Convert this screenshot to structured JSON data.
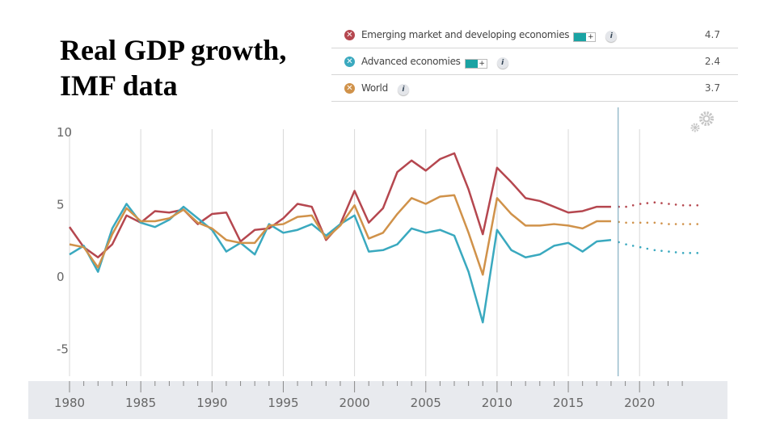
{
  "slide": {
    "title_line1": "Real GDP growth,",
    "title_line2": "IMF data"
  },
  "legend": [
    {
      "label": "Emerging market and developing economies",
      "value": "4.7",
      "color": "#b5474f",
      "has_toggle": true,
      "toggle_label": "+",
      "info": "i"
    },
    {
      "label": "Advanced economies",
      "value": "2.4",
      "color": "#3aa9bf",
      "has_toggle": true,
      "toggle_label": "+",
      "info": "i"
    },
    {
      "label": "World",
      "value": "3.7",
      "color": "#d0924a",
      "has_toggle": false,
      "info": "i"
    }
  ],
  "settings_icon": "gear-icon",
  "chart_data": {
    "type": "line",
    "title": "Real GDP growth, IMF data",
    "xlabel": "",
    "ylabel": "",
    "ylim": [
      -5,
      10
    ],
    "xlim": [
      1980,
      2024
    ],
    "yticks": [
      "10",
      "5",
      "0",
      "-5"
    ],
    "ytick_values": [
      10,
      5,
      0,
      -5
    ],
    "xticks": [
      "1980",
      "1985",
      "1990",
      "1995",
      "2000",
      "2005",
      "2010",
      "2015",
      "2020"
    ],
    "xtick_values": [
      1980,
      1985,
      1990,
      1995,
      2000,
      2005,
      2010,
      2015,
      2020
    ],
    "grid": true,
    "current_year_marker": 2018.5,
    "projection_start": 2019,
    "x": [
      1980,
      1981,
      1982,
      1983,
      1984,
      1985,
      1986,
      1987,
      1988,
      1989,
      1990,
      1991,
      1992,
      1993,
      1994,
      1995,
      1996,
      1997,
      1998,
      1999,
      2000,
      2001,
      2002,
      2003,
      2004,
      2005,
      2006,
      2007,
      2008,
      2009,
      2010,
      2011,
      2012,
      2013,
      2014,
      2015,
      2016,
      2017,
      2018,
      2019,
      2020,
      2021,
      2022,
      2023,
      2024
    ],
    "series": [
      {
        "name": "Emerging market and developing economies",
        "color": "#b5474f",
        "values": [
          3.4,
          2.0,
          1.3,
          2.2,
          4.2,
          3.7,
          4.5,
          4.4,
          4.6,
          3.6,
          4.3,
          4.4,
          2.4,
          3.2,
          3.3,
          4.0,
          5.0,
          4.8,
          2.5,
          3.6,
          5.9,
          3.7,
          4.7,
          7.2,
          8.0,
          7.3,
          8.1,
          8.5,
          6.0,
          2.9,
          7.5,
          6.5,
          5.4,
          5.2,
          4.8,
          4.4,
          4.5,
          4.8,
          4.8,
          4.8,
          5.0,
          5.1,
          5.0,
          4.9,
          4.9
        ]
      },
      {
        "name": "Advanced economies",
        "color": "#3aa9bf",
        "values": [
          1.5,
          2.1,
          0.3,
          3.3,
          5.0,
          3.7,
          3.4,
          3.9,
          4.8,
          4.0,
          3.2,
          1.7,
          2.3,
          1.5,
          3.6,
          3.0,
          3.2,
          3.6,
          2.8,
          3.6,
          4.2,
          1.7,
          1.8,
          2.2,
          3.3,
          3.0,
          3.2,
          2.8,
          0.3,
          -3.2,
          3.2,
          1.8,
          1.3,
          1.5,
          2.1,
          2.3,
          1.7,
          2.4,
          2.5,
          2.2,
          2.0,
          1.8,
          1.7,
          1.6,
          1.6
        ]
      },
      {
        "name": "World",
        "color": "#d0924a",
        "values": [
          2.2,
          2.0,
          0.6,
          2.9,
          4.7,
          3.8,
          3.8,
          4.0,
          4.6,
          3.7,
          3.3,
          2.5,
          2.3,
          2.3,
          3.5,
          3.6,
          4.1,
          4.2,
          2.6,
          3.5,
          4.9,
          2.6,
          3.0,
          4.3,
          5.4,
          5.0,
          5.5,
          5.6,
          3.0,
          0.1,
          5.4,
          4.3,
          3.5,
          3.5,
          3.6,
          3.5,
          3.3,
          3.8,
          3.8,
          3.7,
          3.7,
          3.7,
          3.6,
          3.6,
          3.6
        ]
      }
    ]
  }
}
